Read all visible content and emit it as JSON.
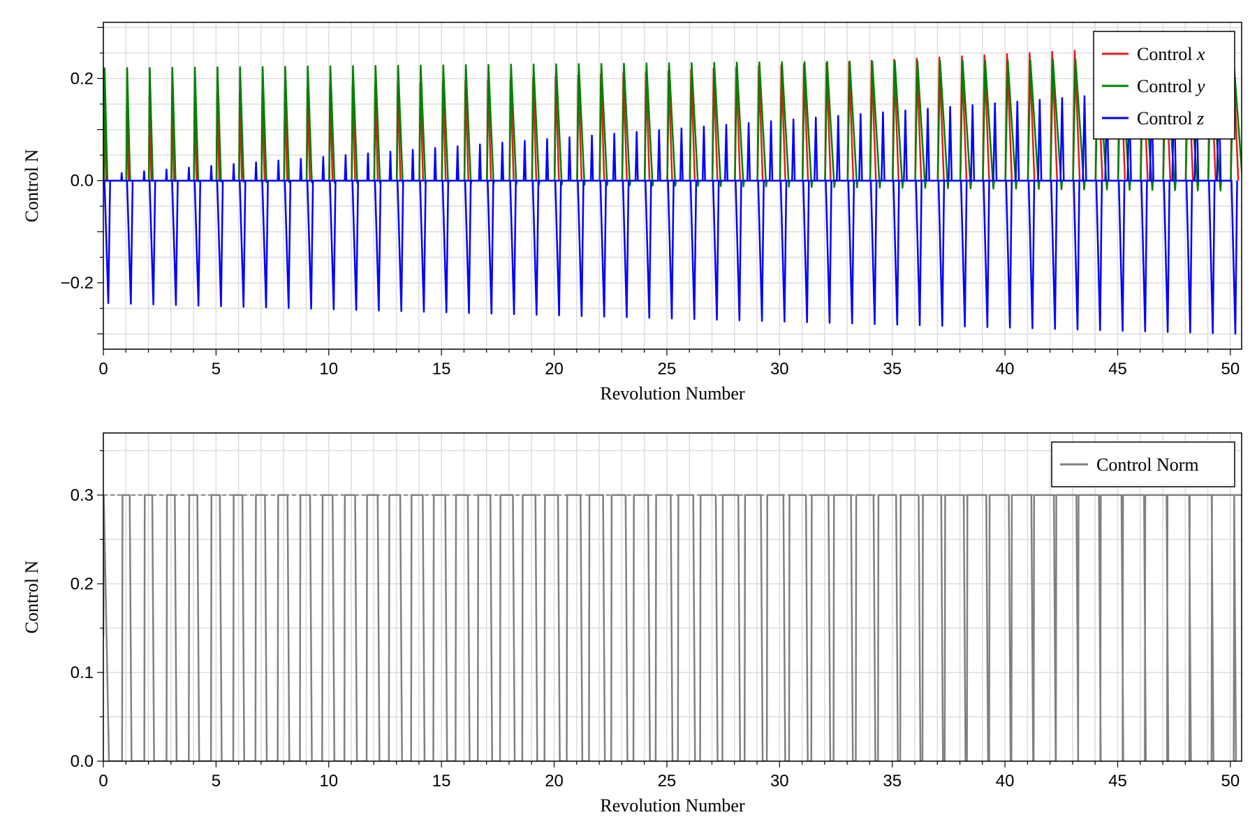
{
  "chart_data": [
    {
      "type": "line",
      "xlabel": "Revolution Number",
      "ylabel": "Control N",
      "xlim": [
        0,
        50.5
      ],
      "ylim": [
        -0.33,
        0.31
      ],
      "xticks": [
        0,
        5,
        10,
        15,
        20,
        25,
        30,
        35,
        40,
        45,
        50
      ],
      "xtick_labels": [
        "0",
        "5",
        "10",
        "15",
        "20",
        "25",
        "30",
        "35",
        "40",
        "45",
        "50"
      ],
      "yticks": [
        -0.2,
        0.0,
        0.2
      ],
      "ytick_labels": [
        "−0.2",
        "0.0",
        "0.2"
      ],
      "legend_position": "top-right",
      "series": [
        {
          "name": "Control x",
          "label_prefix": "Control ",
          "label_var": "x",
          "color": "#e41a1c",
          "pulse": {
            "period": 1.0,
            "start": 0.0,
            "peak_start": 0.16,
            "peak_end": 0.27,
            "width_start": 0.12,
            "width_end": 0.36
          }
        },
        {
          "name": "Control y",
          "label_prefix": "Control ",
          "label_var": "y",
          "color": "#008000",
          "pulse": {
            "period": 1.0,
            "start": 0.0,
            "peak_start": 0.22,
            "peak_end": 0.24,
            "trough_start": 0.0,
            "trough_end": -0.02
          }
        },
        {
          "name": "Control z",
          "label_prefix": "Control ",
          "label_var": "z",
          "color": "#0000ff",
          "pulse": {
            "period": 1.0,
            "start": 0.0,
            "peak_start": 0.015,
            "peak_end": 0.19,
            "trough_start": -0.24,
            "trough_end": -0.3
          }
        }
      ]
    },
    {
      "type": "line",
      "xlabel": "Revolution Number",
      "ylabel": "Control N",
      "xlim": [
        0,
        50.5
      ],
      "ylim": [
        0,
        0.37
      ],
      "xticks": [
        0,
        5,
        10,
        15,
        20,
        25,
        30,
        35,
        40,
        45,
        50
      ],
      "xtick_labels": [
        "0",
        "5",
        "10",
        "15",
        "20",
        "25",
        "30",
        "35",
        "40",
        "45",
        "50"
      ],
      "yticks": [
        0.0,
        0.1,
        0.2,
        0.3
      ],
      "ytick_labels": [
        "0.0",
        "0.1",
        "0.2",
        "0.3"
      ],
      "reference_line": {
        "y": 0.3,
        "style": "dashed",
        "color": "#666666"
      },
      "legend_position": "top-right",
      "series": [
        {
          "name": "Control Norm",
          "color": "#808080",
          "pulse": {
            "period": 1.0,
            "start": 0.0,
            "max": 0.3,
            "on_fraction_start": 0.12,
            "on_fraction_end": 0.8
          }
        }
      ]
    }
  ]
}
